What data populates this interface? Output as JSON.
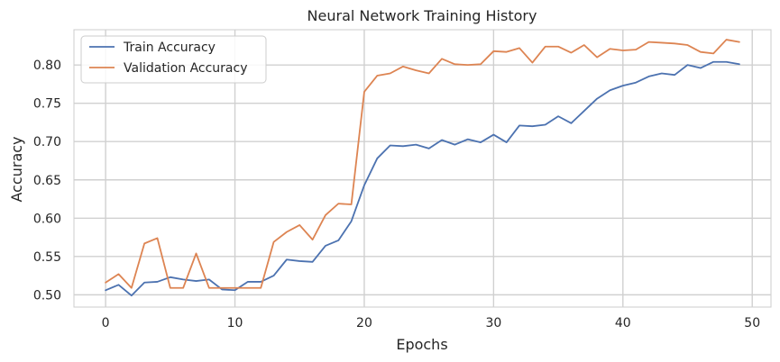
{
  "chart_data": {
    "type": "line",
    "title": "Neural Network Training History",
    "xlabel": "Epochs",
    "ylabel": "Accuracy",
    "xlim": [
      -2.45,
      51.45
    ],
    "ylim": [
      0.484,
      0.846
    ],
    "xticks": [
      0,
      10,
      20,
      30,
      40,
      50
    ],
    "xtick_labels": [
      "0",
      "10",
      "20",
      "30",
      "40",
      "50"
    ],
    "yticks": [
      0.5,
      0.55,
      0.6,
      0.65,
      0.7,
      0.75,
      0.8
    ],
    "ytick_labels": [
      "0.50",
      "0.55",
      "0.60",
      "0.65",
      "0.70",
      "0.75",
      "0.80"
    ],
    "grid": true,
    "legend_position": "top-left",
    "x": [
      0,
      1,
      2,
      3,
      4,
      5,
      6,
      7,
      8,
      9,
      10,
      11,
      12,
      13,
      14,
      15,
      16,
      17,
      18,
      19,
      20,
      21,
      22,
      23,
      24,
      25,
      26,
      27,
      28,
      29,
      30,
      31,
      32,
      33,
      34,
      35,
      36,
      37,
      38,
      39,
      40,
      41,
      42,
      43,
      44,
      45,
      46,
      47,
      48,
      49
    ],
    "series": [
      {
        "name": "Train Accuracy",
        "color": "#4c72b0",
        "values": [
          0.506,
          0.513,
          0.499,
          0.516,
          0.517,
          0.523,
          0.52,
          0.518,
          0.52,
          0.507,
          0.506,
          0.517,
          0.517,
          0.525,
          0.546,
          0.544,
          0.543,
          0.564,
          0.571,
          0.596,
          0.643,
          0.678,
          0.695,
          0.694,
          0.696,
          0.691,
          0.702,
          0.696,
          0.703,
          0.699,
          0.709,
          0.699,
          0.721,
          0.72,
          0.722,
          0.733,
          0.724,
          0.74,
          0.756,
          0.767,
          0.773,
          0.777,
          0.785,
          0.789,
          0.787,
          0.8,
          0.796,
          0.804,
          0.804,
          0.801
        ]
      },
      {
        "name": "Validation Accuracy",
        "color": "#dd8452",
        "values": [
          0.516,
          0.527,
          0.509,
          0.567,
          0.574,
          0.509,
          0.509,
          0.554,
          0.509,
          0.509,
          0.509,
          0.509,
          0.509,
          0.569,
          0.582,
          0.591,
          0.572,
          0.604,
          0.619,
          0.618,
          0.765,
          0.786,
          0.789,
          0.798,
          0.793,
          0.789,
          0.808,
          0.801,
          0.8,
          0.801,
          0.818,
          0.817,
          0.822,
          0.803,
          0.824,
          0.824,
          0.816,
          0.826,
          0.81,
          0.821,
          0.819,
          0.82,
          0.83,
          0.829,
          0.828,
          0.826,
          0.817,
          0.815,
          0.833,
          0.83
        ]
      }
    ]
  }
}
